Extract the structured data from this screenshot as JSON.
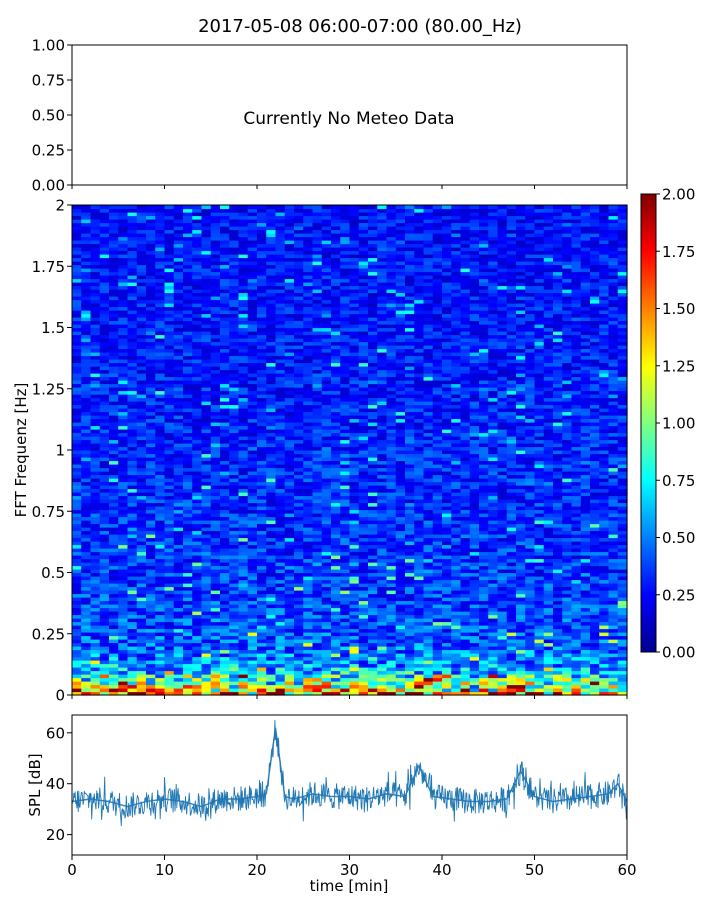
{
  "figure": {
    "title": "2017-05-08 06:00-07:00 (80.00_Hz)"
  },
  "chart_data": [
    {
      "type": "line",
      "panel": "meteo",
      "message": "Currently No Meteo Data",
      "ylim": [
        0,
        1
      ],
      "yticks": [
        "0.00",
        "0.25",
        "0.50",
        "0.75",
        "1.00"
      ],
      "xlim": [
        0,
        60
      ],
      "grid": false
    },
    {
      "type": "heatmap",
      "panel": "spectrogram",
      "ylabel": "FFT Frequenz [Hz]",
      "ylim": [
        0,
        2
      ],
      "yticks": [
        "0",
        "0.25",
        "0.5",
        "0.75",
        "1",
        "1.25",
        "1.5",
        "1.75",
        "2"
      ],
      "xlim": [
        0,
        60
      ],
      "colormap": "jet",
      "colorbar": {
        "range": [
          0,
          2
        ],
        "ticks": [
          "0.00",
          "0.25",
          "0.50",
          "0.75",
          "1.00",
          "1.25",
          "1.50",
          "1.75",
          "2.00"
        ],
        "colors": [
          "#00008f",
          "#0000ff",
          "#0080ff",
          "#00ffff",
          "#80ff80",
          "#ffff00",
          "#ff8000",
          "#ff0000",
          "#800000"
        ]
      },
      "profile": {
        "freq_hz": [
          0,
          0.01,
          0.03,
          0.06,
          0.1,
          0.15,
          0.2,
          0.3,
          0.5,
          1.0,
          1.5,
          2.0
        ],
        "typical_value": [
          1.7,
          1.5,
          1.1,
          0.85,
          0.6,
          0.5,
          0.42,
          0.38,
          0.34,
          0.3,
          0.28,
          0.26
        ]
      },
      "grid": false
    },
    {
      "type": "line",
      "panel": "spl",
      "xlabel": "time [min]",
      "ylabel": "SPL [dB]",
      "xlim": [
        0,
        60
      ],
      "ylim": [
        12,
        67
      ],
      "xticks": [
        "0",
        "10",
        "20",
        "30",
        "40",
        "50",
        "60"
      ],
      "yticks": [
        "20",
        "40",
        "60"
      ],
      "line_color": "#1f77b4",
      "series": [
        {
          "x": [
            0,
            2,
            4,
            6,
            8,
            10,
            12,
            14,
            16,
            18,
            20,
            21,
            22,
            23,
            24,
            26,
            28,
            30,
            32,
            34,
            36,
            37.5,
            39,
            41,
            43,
            45,
            47,
            48.5,
            50,
            52,
            54,
            56,
            58,
            59,
            60
          ],
          "y": [
            33,
            34,
            33,
            31,
            33,
            34,
            33,
            31,
            34,
            34,
            35,
            36,
            62,
            35,
            34,
            36,
            35,
            35,
            34,
            36,
            35,
            47,
            35,
            34,
            33,
            33,
            34,
            45,
            35,
            33,
            34,
            35,
            36,
            40,
            33
          ]
        }
      ],
      "grid": false
    }
  ]
}
